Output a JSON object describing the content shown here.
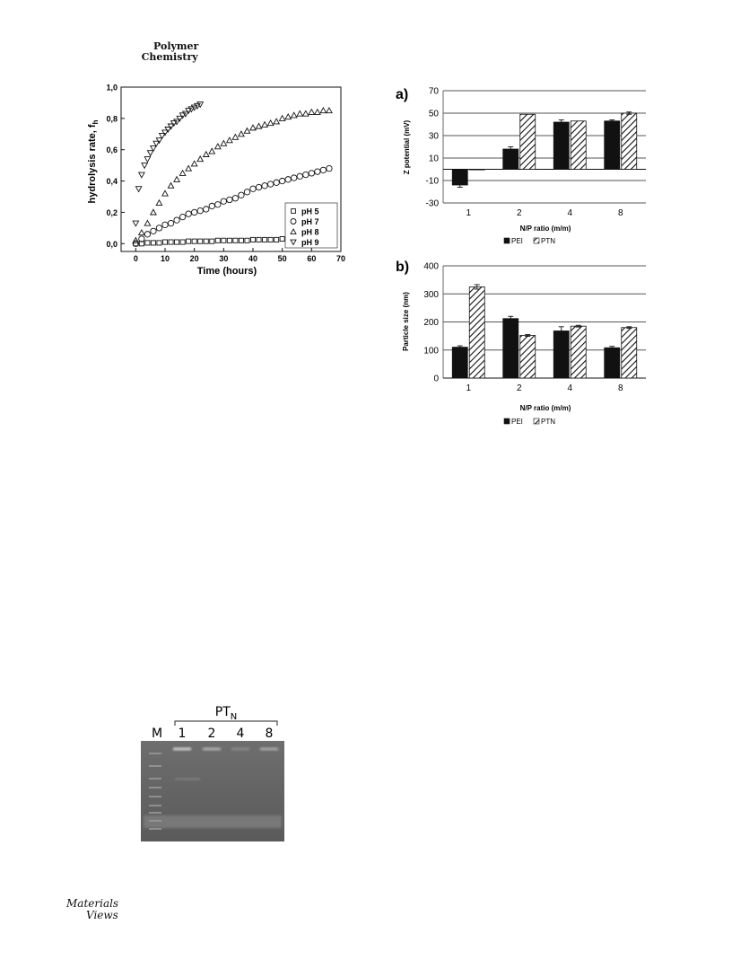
{
  "journal": {
    "line1": "Polymer",
    "line2": "Chemistry"
  },
  "publisher_logo": {
    "line1": "Materials",
    "line2": "Views"
  },
  "chart_data": [
    {
      "id": "hydrolysis",
      "type": "scatter",
      "xlabel": "Time (hours)",
      "ylabel": "hydrolysis rate, f",
      "ylabel_sub": "h",
      "xlim": [
        -5,
        70
      ],
      "ylim": [
        -0.05,
        1.0
      ],
      "xticks": [
        0,
        10,
        20,
        30,
        40,
        50,
        60,
        70
      ],
      "yticks": [
        0.0,
        0.2,
        0.4,
        0.6,
        0.8,
        1.0
      ],
      "ytick_labels": [
        "0,0",
        "0,2",
        "0,4",
        "0,6",
        "0,8",
        "1,0"
      ],
      "legend_position": "bottom-right",
      "series": [
        {
          "name": "pH 5",
          "marker": "square",
          "x": [
            0,
            2,
            4,
            6,
            8,
            10,
            12,
            14,
            16,
            18,
            20,
            22,
            24,
            26,
            28,
            30,
            32,
            34,
            36,
            38,
            40,
            42,
            44,
            46,
            48,
            50,
            52,
            54,
            56,
            58,
            60,
            62,
            64,
            66
          ],
          "y": [
            0.0,
            0.0,
            0.005,
            0.005,
            0.005,
            0.01,
            0.01,
            0.01,
            0.01,
            0.015,
            0.015,
            0.015,
            0.015,
            0.015,
            0.02,
            0.02,
            0.02,
            0.02,
            0.02,
            0.02,
            0.025,
            0.025,
            0.025,
            0.025,
            0.025,
            0.03,
            0.03,
            0.03,
            0.03,
            0.03,
            0.035,
            0.035,
            0.035,
            0.035
          ]
        },
        {
          "name": "pH 7",
          "marker": "circle",
          "x": [
            0,
            2,
            4,
            6,
            8,
            10,
            12,
            14,
            16,
            18,
            20,
            22,
            24,
            26,
            28,
            30,
            32,
            34,
            36,
            38,
            40,
            42,
            44,
            46,
            48,
            50,
            52,
            54,
            56,
            58,
            60,
            62,
            64,
            66
          ],
          "y": [
            0.0,
            0.03,
            0.06,
            0.08,
            0.1,
            0.12,
            0.13,
            0.15,
            0.17,
            0.19,
            0.2,
            0.21,
            0.22,
            0.24,
            0.25,
            0.27,
            0.28,
            0.29,
            0.31,
            0.33,
            0.35,
            0.36,
            0.37,
            0.38,
            0.39,
            0.4,
            0.41,
            0.42,
            0.43,
            0.44,
            0.45,
            0.46,
            0.47,
            0.48
          ]
        },
        {
          "name": "pH 8",
          "marker": "triangle-up",
          "x": [
            0,
            2,
            4,
            6,
            8,
            10,
            12,
            14,
            16,
            18,
            20,
            22,
            24,
            26,
            28,
            30,
            32,
            34,
            36,
            38,
            40,
            42,
            44,
            46,
            48,
            50,
            52,
            54,
            56,
            58,
            60,
            62,
            64,
            66
          ],
          "y": [
            0.02,
            0.07,
            0.13,
            0.2,
            0.26,
            0.32,
            0.37,
            0.41,
            0.45,
            0.48,
            0.51,
            0.54,
            0.57,
            0.59,
            0.62,
            0.64,
            0.66,
            0.68,
            0.7,
            0.72,
            0.74,
            0.75,
            0.76,
            0.77,
            0.78,
            0.8,
            0.81,
            0.82,
            0.83,
            0.83,
            0.84,
            0.84,
            0.85,
            0.85
          ]
        },
        {
          "name": "pH 9",
          "marker": "triangle-down",
          "x": [
            0,
            1,
            2,
            3,
            4,
            5,
            6,
            7,
            8,
            9,
            10,
            11,
            12,
            13,
            14,
            15,
            16,
            17,
            18,
            19,
            20,
            21,
            22
          ],
          "y": [
            0.13,
            0.35,
            0.44,
            0.5,
            0.54,
            0.58,
            0.61,
            0.64,
            0.66,
            0.69,
            0.71,
            0.73,
            0.75,
            0.77,
            0.78,
            0.8,
            0.82,
            0.83,
            0.85,
            0.86,
            0.87,
            0.88,
            0.89
          ]
        }
      ]
    },
    {
      "id": "zpotential",
      "type": "bar",
      "panel_label": "a)",
      "categories": [
        "1",
        "2",
        "4",
        "8"
      ],
      "xlabel": "N/P ratio (m/m)",
      "ylabel": "Z potential (mV)",
      "ylim": [
        -30,
        70
      ],
      "yticks": [
        -30,
        -10,
        10,
        30,
        50,
        70
      ],
      "grid": true,
      "legend_position": "bottom",
      "series": [
        {
          "name": "PEI",
          "values": [
            -14,
            18,
            42,
            43
          ],
          "errors": [
            2,
            2,
            2,
            1
          ],
          "pattern": "solid"
        },
        {
          "name": "PTN",
          "values": [
            0,
            49,
            43,
            50
          ],
          "errors": [
            0,
            0,
            0,
            1
          ],
          "pattern": "hatched"
        }
      ]
    },
    {
      "id": "particlesize",
      "type": "bar",
      "panel_label": "b)",
      "categories": [
        "1",
        "2",
        "4",
        "8"
      ],
      "xlabel": "N/P ratio (m/m)",
      "ylabel": "Particle size (nm)",
      "ylim": [
        0,
        400
      ],
      "yticks": [
        0,
        100,
        200,
        300,
        400
      ],
      "grid": true,
      "legend_position": "bottom",
      "series": [
        {
          "name": "PEI",
          "values": [
            110,
            212,
            168,
            108
          ],
          "errors": [
            5,
            8,
            15,
            5
          ],
          "pattern": "solid"
        },
        {
          "name": "PTN",
          "values": [
            325,
            152,
            185,
            180
          ],
          "errors": [
            8,
            3,
            3,
            3
          ],
          "pattern": "hatched"
        }
      ]
    }
  ],
  "gel": {
    "group_label": "PT",
    "group_label_sub": "N",
    "marker_label": "M",
    "lanes": [
      "1",
      "2",
      "4",
      "8"
    ]
  }
}
